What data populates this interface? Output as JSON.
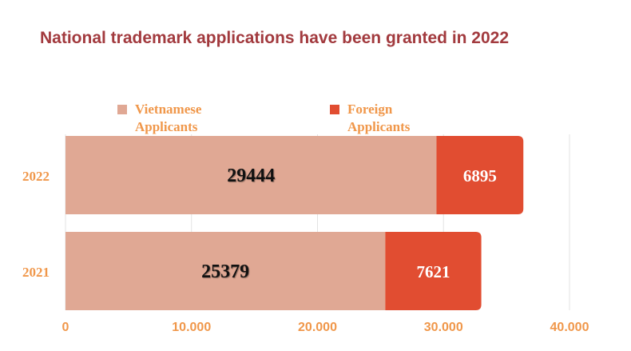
{
  "chart_data": {
    "type": "bar",
    "orientation": "horizontal",
    "stacked": true,
    "title": "National trademark applications have been granted in 2022",
    "categories": [
      "2022",
      "2021"
    ],
    "series": [
      {
        "name": "Vietnamese Applicants",
        "values": [
          29444,
          25379
        ],
        "color": "#e0a894"
      },
      {
        "name": "Foreign Applicants",
        "values": [
          6895,
          7621
        ],
        "color": "#e14d31"
      }
    ],
    "xlim": [
      0,
      40000
    ],
    "xticks": [
      {
        "value": 0,
        "label": "0"
      },
      {
        "value": 10000,
        "label": "10.000"
      },
      {
        "value": 20000,
        "label": "20.000"
      },
      {
        "value": 30000,
        "label": "30.000"
      },
      {
        "value": 40000,
        "label": "40.000"
      }
    ],
    "grid": true,
    "legend_position": "top",
    "axis_label_color": "#f0974a",
    "title_color": "#a23a3e"
  }
}
